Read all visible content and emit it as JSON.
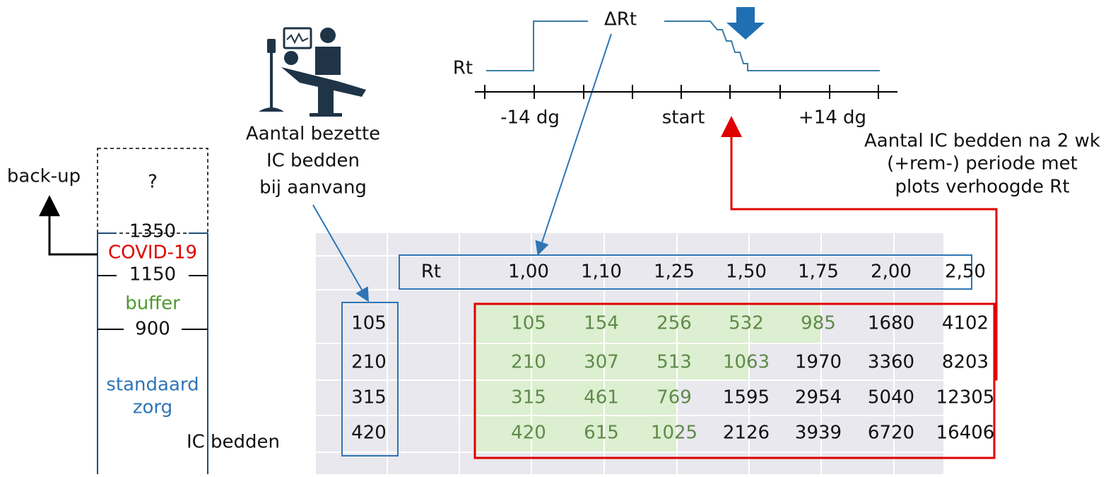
{
  "capacity": {
    "backup": "back-up",
    "unknown": "?",
    "top": 1350,
    "covid": "COVID-19",
    "covid_limit": 1150,
    "buffer": "buffer",
    "buffer_limit": 900,
    "standard": [
      "standaard",
      "zorg"
    ],
    "caption": "IC bedden"
  },
  "occupied_label": [
    "Aantal bezette",
    "IC bedden",
    "bij aanvang"
  ],
  "timeline": {
    "rt": "Rt",
    "delta": "ΔRt",
    "ticks": [
      "-14 dg",
      "start",
      "+14 dg"
    ]
  },
  "result_label": [
    "Aantal IC bedden na 2 wk",
    "(+rem-) periode met",
    "plots verhoogde Rt"
  ],
  "table": {
    "header": [
      "Rt",
      "1,00",
      "1,10",
      "1,25",
      "1,50",
      "1,75",
      "2,00",
      "2,50"
    ],
    "starts": [
      105,
      210,
      315,
      420
    ],
    "rows": [
      [
        105,
        154,
        256,
        532,
        985,
        1680,
        4102
      ],
      [
        210,
        307,
        513,
        1063,
        1970,
        3360,
        8203
      ],
      [
        315,
        461,
        769,
        1595,
        2954,
        5040,
        12305
      ],
      [
        420,
        615,
        1025,
        2126,
        3939,
        6720,
        16406
      ]
    ]
  }
}
